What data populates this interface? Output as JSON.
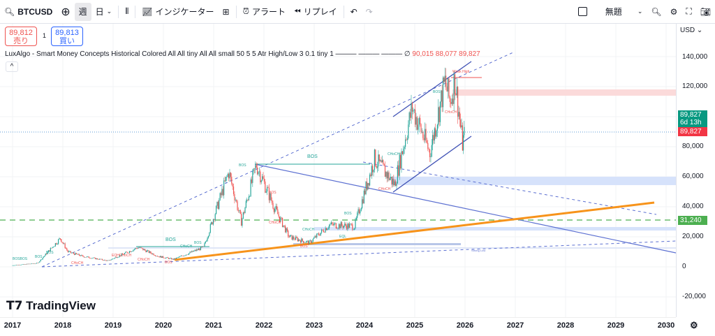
{
  "toolbar": {
    "symbol": "BTCUSD",
    "interval_week": "週",
    "interval_day": "日",
    "indicators": "インジケーター",
    "alert": "アラート",
    "replay": "リプレイ",
    "layout_name": "無題"
  },
  "quote": {
    "sell_price": "89,812",
    "sell_label": "売り",
    "spread": "1",
    "buy_price": "89,813",
    "buy_label": "買い"
  },
  "indicator": {
    "name": "LuxAlgo - Smart Money Concepts Historical Colored All All tiny All All small 50 5 5 Atr High/Low 3 0.1 tiny 1 ——— ——— ———",
    "values": [
      "90,015",
      "88,077",
      "89,827"
    ]
  },
  "price_axis": {
    "currency": "USD",
    "ticks": [
      "140,000",
      "120,000",
      "80,000",
      "60,000",
      "40,000",
      "20,000",
      "0",
      "-20,000"
    ],
    "last_price": "89,827",
    "countdown": "6d 13h",
    "last_price_red": "89,827",
    "level": "31,240"
  },
  "time_axis": {
    "ticks": [
      "2017",
      "2018",
      "2019",
      "2020",
      "2021",
      "2022",
      "2023",
      "2024",
      "2025",
      "2026",
      "2027",
      "2028",
      "2029",
      "2030"
    ]
  },
  "chart_labels": {
    "bos": "BOS",
    "choch": "CHoCH",
    "eql": "EQL",
    "weak_high": "Weak High",
    "strong_low": "Strong Low",
    "eqh": "EQH"
  },
  "brand": "TradingView",
  "colors": {
    "up": "#26a69a",
    "down": "#ef5350",
    "orange": "#f7931a",
    "blue": "#5b6fd1"
  }
}
